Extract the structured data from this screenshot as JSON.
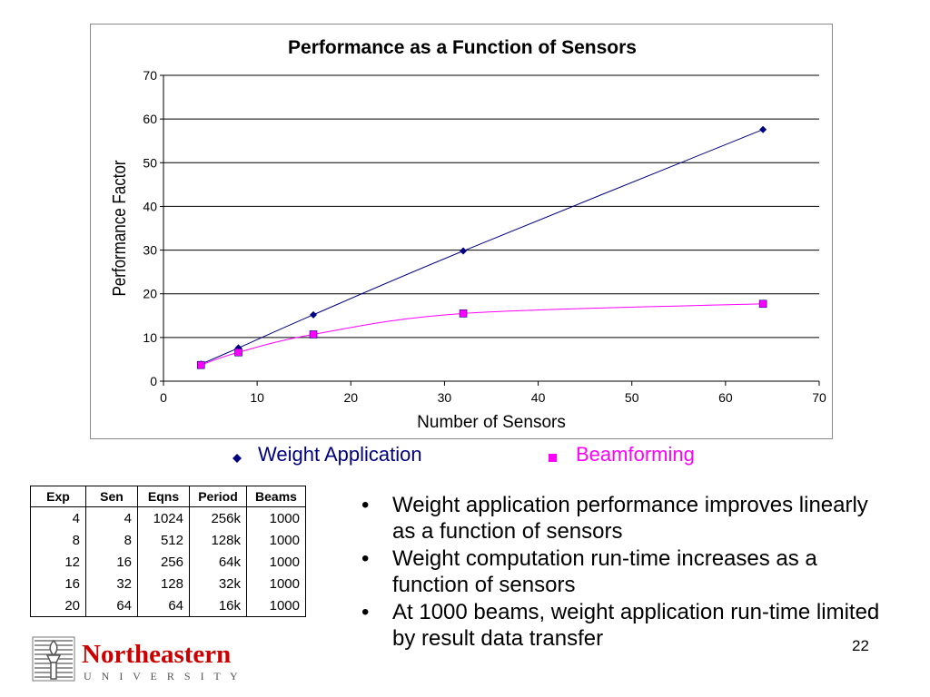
{
  "chart_data": {
    "type": "line",
    "title": "Performance as a Function of Sensors",
    "xlabel": "Number of Sensors",
    "ylabel": "Performance Factor",
    "xlim": [
      0,
      70
    ],
    "ylim": [
      0,
      70
    ],
    "x_ticks": [
      "0",
      "10",
      "20",
      "30",
      "40",
      "50",
      "60",
      "70"
    ],
    "y_ticks": [
      "0",
      "10",
      "20",
      "30",
      "40",
      "50",
      "60",
      "70"
    ],
    "grid": "horizontal",
    "legend_position": "bottom",
    "series": [
      {
        "name": "Weight Application",
        "color": "#000080",
        "marker": "diamond",
        "x": [
          4,
          8,
          16,
          32,
          64
        ],
        "y": [
          3.9,
          7.6,
          15.2,
          29.8,
          57.6
        ]
      },
      {
        "name": "Beamforming",
        "color": "#ff00ff",
        "marker": "square",
        "x": [
          4,
          8,
          16,
          32,
          64
        ],
        "y": [
          3.7,
          6.6,
          10.7,
          15.5,
          17.7
        ]
      }
    ]
  },
  "legend": {
    "series1_label": "Weight Application",
    "series2_label": "Beamforming"
  },
  "table": {
    "headers": [
      "Exp",
      "Sen",
      "Eqns",
      "Period",
      "Beams"
    ],
    "rows": [
      [
        "4",
        "4",
        "1024",
        "256k",
        "1000"
      ],
      [
        "8",
        "8",
        "512",
        "128k",
        "1000"
      ],
      [
        "12",
        "16",
        "256",
        "64k",
        "1000"
      ],
      [
        "16",
        "32",
        "128",
        "32k",
        "1000"
      ],
      [
        "20",
        "64",
        "64",
        "16k",
        "1000"
      ]
    ]
  },
  "bullets": [
    "Weight application performance improves linearly as a function of sensors",
    "Weight computation run-time increases as a function of sensors",
    "At 1000 beams, weight application run-time limited by result data transfer"
  ],
  "bullet_symbol": "•",
  "page_number": "22",
  "logo": {
    "name": "Northeastern",
    "subtitle": "U N I V E R S I T Y",
    "color": "#cc0000"
  }
}
